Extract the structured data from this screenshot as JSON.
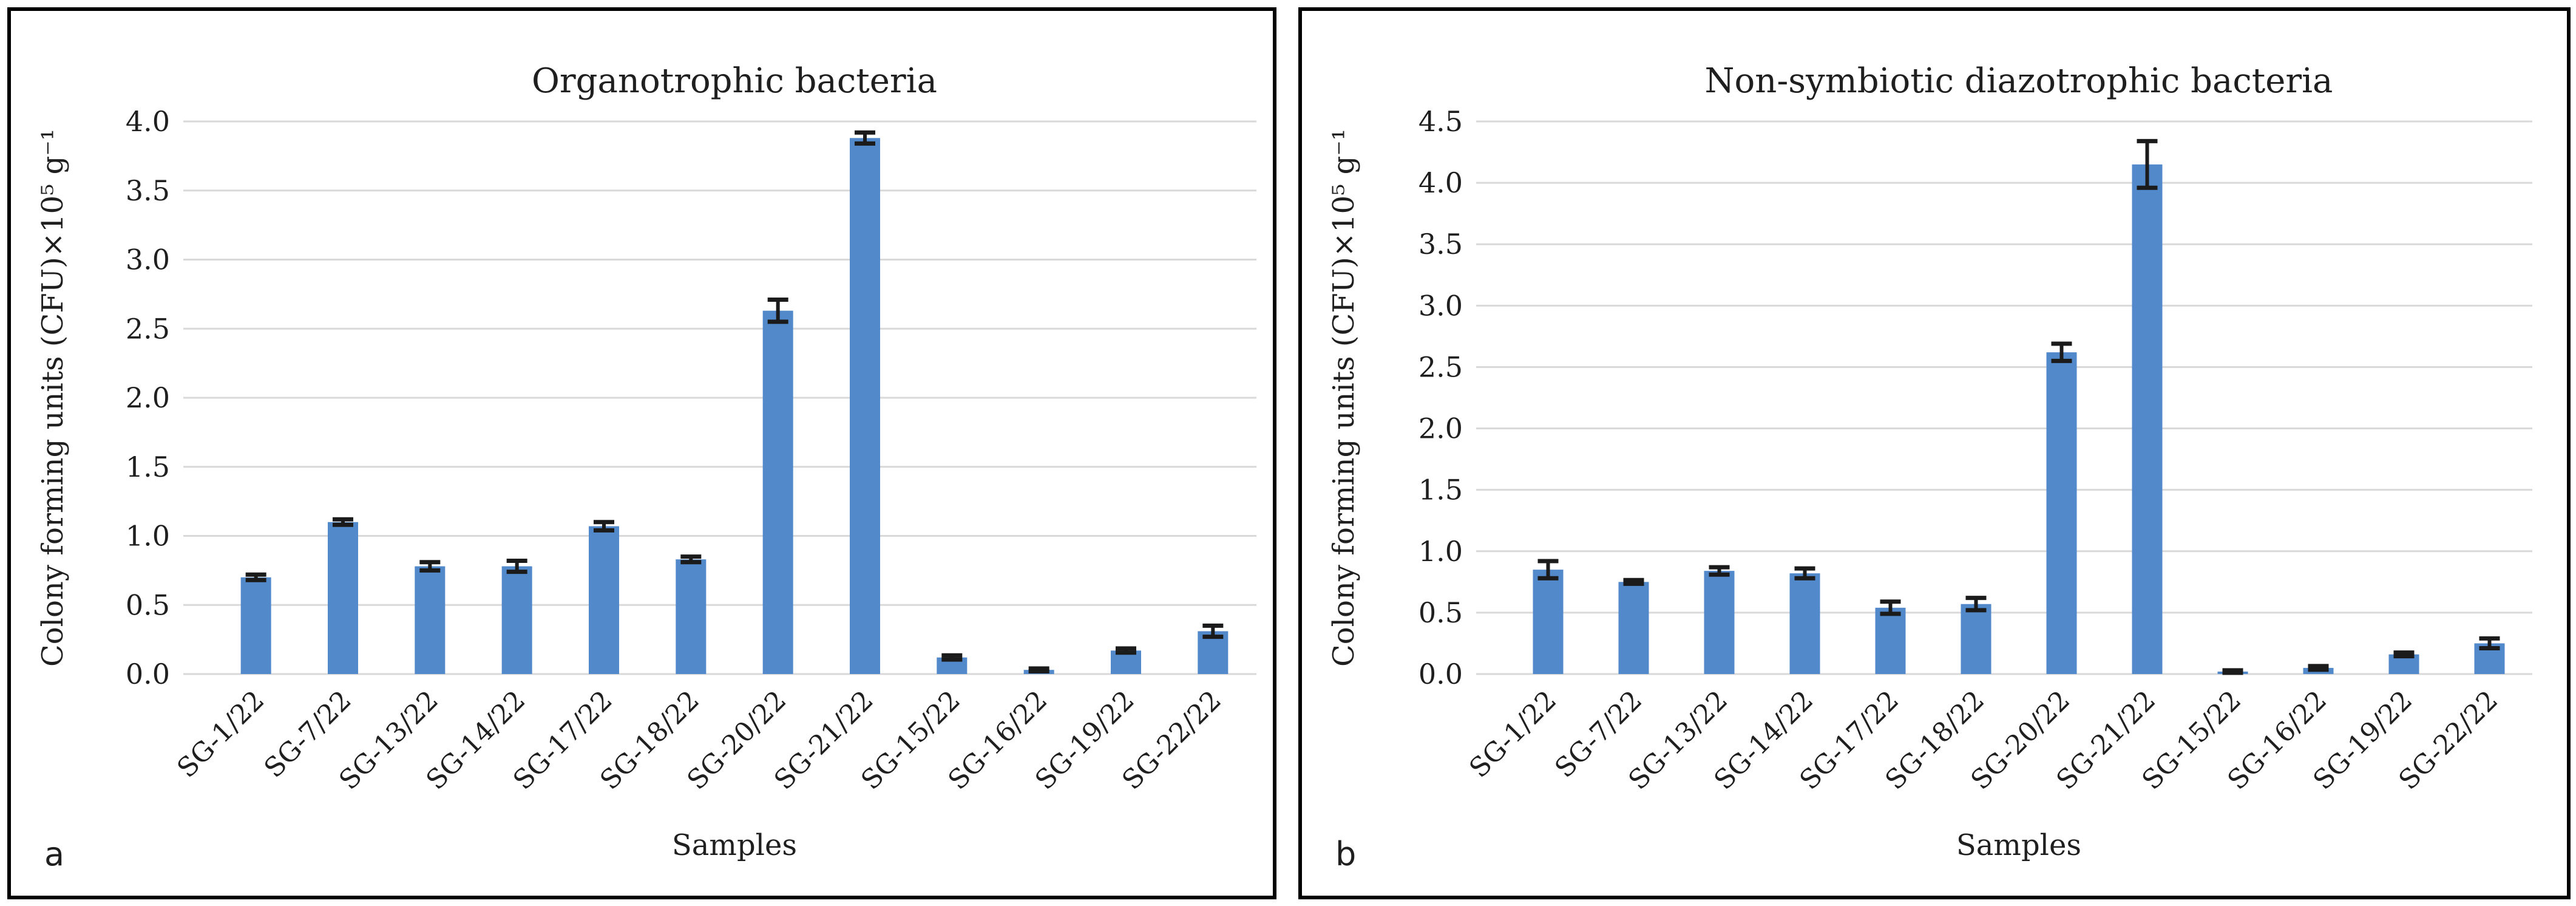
{
  "figure": {
    "background": "#ffffff",
    "panel_border_color": "#000000",
    "grid_color": "#d9d9d9",
    "bar_color": "#5289cb",
    "error_bar_color": "#1b1b1b",
    "text_color": "#1f1f1f"
  },
  "chart_data": [
    {
      "type": "bar",
      "panel_letter": "a",
      "title": "Organotrophic bacteria",
      "xlabel": "Samples",
      "ylabel": "Colony forming units (CFU)×10⁵ g⁻¹",
      "categories": [
        "SG-1/22",
        "SG-7/22",
        "SG-13/22",
        "SG-14/22",
        "SG-17/22",
        "SG-18/22",
        "SG-20/22",
        "SG-21/22",
        "SG-15/22",
        "SG-16/22",
        "SG-19/22",
        "SG-22/22"
      ],
      "values": [
        0.7,
        1.1,
        0.78,
        0.78,
        1.07,
        0.83,
        2.63,
        3.88,
        0.12,
        0.03,
        0.17,
        0.31
      ],
      "errors": [
        0.02,
        0.02,
        0.03,
        0.04,
        0.03,
        0.02,
        0.08,
        0.04,
        0.015,
        0.01,
        0.015,
        0.04
      ],
      "ylim": [
        0,
        4.0
      ],
      "ytick_step": 0.5,
      "ytick_labels": [
        "0.0",
        "0.5",
        "1.0",
        "1.5",
        "2.0",
        "2.5",
        "3.0",
        "3.5",
        "4.0"
      ],
      "grid": true,
      "legend": "none"
    },
    {
      "type": "bar",
      "panel_letter": "b",
      "title": "Non-symbiotic diazotrophic bacteria",
      "xlabel": "Samples",
      "ylabel": "Colony forming units (CFU)×10⁵ g⁻¹",
      "categories": [
        "SG-1/22",
        "SG-7/22",
        "SG-13/22",
        "SG-14/22",
        "SG-17/22",
        "SG-18/22",
        "SG-20/22",
        "SG-21/22",
        "SG-15/22",
        "SG-16/22",
        "SG-19/22",
        "SG-22/22"
      ],
      "values": [
        0.85,
        0.75,
        0.84,
        0.82,
        0.54,
        0.57,
        2.62,
        4.15,
        0.02,
        0.05,
        0.16,
        0.25
      ],
      "errors": [
        0.07,
        0.015,
        0.03,
        0.04,
        0.05,
        0.05,
        0.07,
        0.19,
        0.01,
        0.015,
        0.015,
        0.04
      ],
      "ylim": [
        0,
        4.5
      ],
      "ytick_step": 0.5,
      "ytick_labels": [
        "0.0",
        "0.5",
        "1.0",
        "1.5",
        "2.0",
        "2.5",
        "3.0",
        "3.5",
        "4.0",
        "4.5"
      ],
      "grid": true,
      "legend": "none"
    }
  ]
}
